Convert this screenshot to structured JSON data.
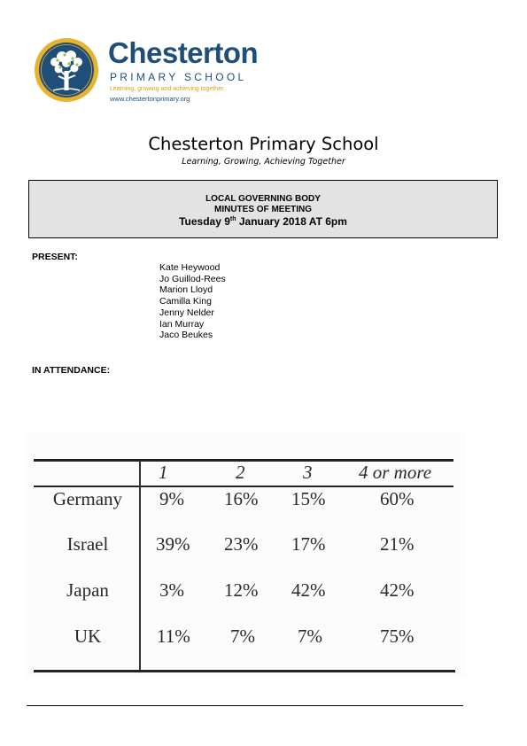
{
  "logo": {
    "name": "Chesterton",
    "subtitle": "PRIMARY SCHOOL",
    "tagline": "Learning, growing and achieving together.",
    "url": "www.chestertonprimary.org",
    "colors": {
      "navy": "#1f4e79",
      "gold": "#d4a017"
    }
  },
  "title": "Chesterton Primary School",
  "motto": "Learning, Growing, Achieving Together",
  "header_box": {
    "line1": "LOCAL GOVERNING BODY",
    "line2": "MINUTES OF MEETING",
    "date_pre": "Tuesday 9",
    "date_sup": "th",
    "date_post": " January 2018 AT 6pm"
  },
  "present_label": "PRESENT:",
  "present": [
    "Kate Heywood",
    "Jo Guillod-Rees",
    "Marion Lloyd",
    "Camilla King",
    "Jenny Nelder",
    "Ian Murray",
    "Jaco Beukes"
  ],
  "attendance_label": "IN ATTENDANCE:",
  "table": {
    "columns": [
      "1",
      "2",
      "3",
      "4 or more"
    ],
    "rows": [
      {
        "label": "Germany",
        "values": [
          "9%",
          "16%",
          "15%",
          "60%"
        ]
      },
      {
        "label": "Israel",
        "values": [
          "39%",
          "23%",
          "17%",
          "21%"
        ]
      },
      {
        "label": "Japan",
        "values": [
          "3%",
          "12%",
          "42%",
          "42%"
        ]
      },
      {
        "label": "UK",
        "values": [
          "11%",
          "7%",
          "7%",
          "75%"
        ]
      }
    ]
  }
}
